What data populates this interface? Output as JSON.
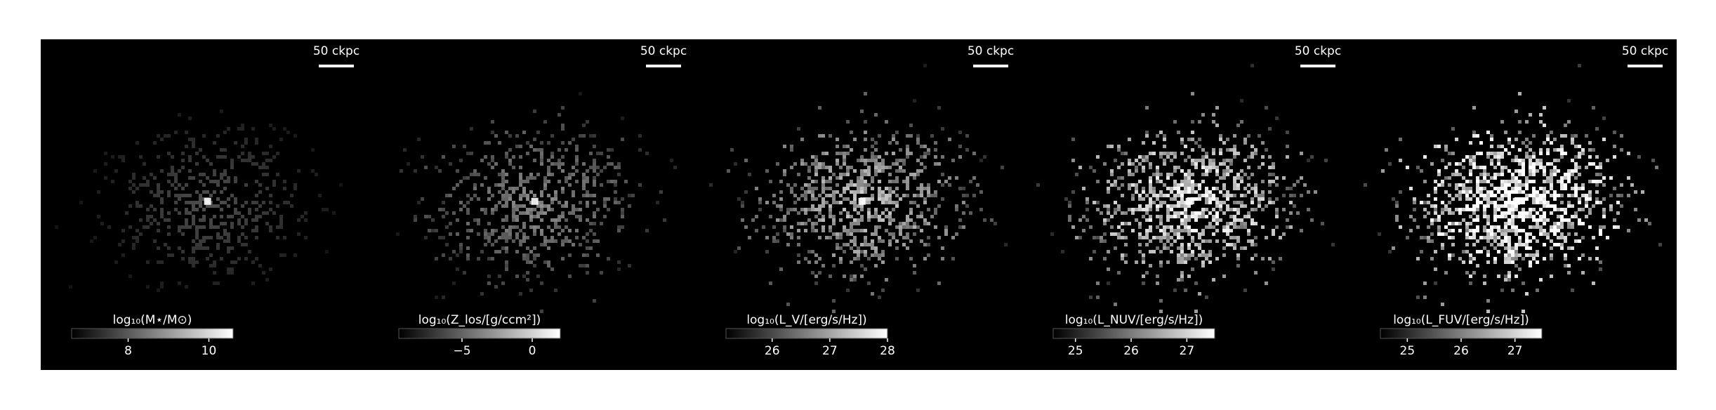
{
  "chart_data": [
    {
      "type": "image",
      "scale_label": "50 ckpc",
      "colorbar_label": "log₁₀(M⋆/M⊙)",
      "clim": [
        6.6,
        10.6
      ],
      "cticks": [
        8,
        10
      ]
    },
    {
      "type": "image",
      "scale_label": "50 ckpc",
      "colorbar_label": "log₁₀(Z_los/[g/ccm²])",
      "clim": [
        -9.5,
        2
      ],
      "cticks": [
        {
          "value": -5,
          "label": "−5"
        },
        0
      ]
    },
    {
      "type": "image",
      "scale_label": "50 ckpc",
      "colorbar_label": "log₁₀(L_V/[erg/s/Hz])",
      "clim": [
        25.2,
        28
      ],
      "cticks": [
        26,
        27,
        28
      ]
    },
    {
      "type": "image",
      "scale_label": "50 ckpc",
      "colorbar_label": "log₁₀(L_NUV/[erg/s/Hz])",
      "clim": [
        24.6,
        27.5
      ],
      "cticks": [
        25,
        26,
        27
      ]
    },
    {
      "type": "image",
      "scale_label": "50 ckpc",
      "colorbar_label": "log₁₀(L_FUV/[erg/s/Hz])",
      "clim": [
        24.5,
        27.5
      ],
      "cticks": [
        25,
        26,
        27
      ]
    }
  ]
}
